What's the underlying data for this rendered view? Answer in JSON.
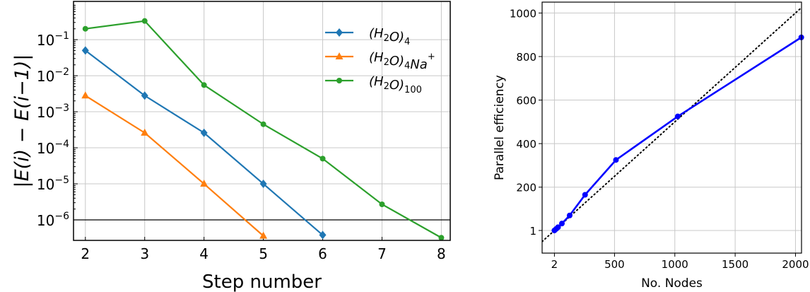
{
  "chart_data": [
    {
      "type": "line",
      "xlabel": "Step number",
      "ylabel": "|E(i) − E(i−1)|",
      "yscale": "log",
      "xlim": [
        1.8,
        8.15
      ],
      "ylim": [
        2.7e-07,
        1.15
      ],
      "xticks": [
        2,
        3,
        4,
        5,
        6,
        7,
        8
      ],
      "yticks": [
        {
          "value": 0.1,
          "label": "10",
          "exp": "−1"
        },
        {
          "value": 0.01,
          "label": "10",
          "exp": "−2"
        },
        {
          "value": 0.001,
          "label": "10",
          "exp": "−3"
        },
        {
          "value": 0.0001,
          "label": "10",
          "exp": "−4"
        },
        {
          "value": 1e-05,
          "label": "10",
          "exp": "−5"
        },
        {
          "value": 1e-06,
          "label": "10",
          "exp": "−6"
        }
      ],
      "grid": true,
      "legend_placement": "top-right",
      "hline": 1e-06,
      "series": [
        {
          "name": "(H2O)4",
          "name_parts": [
            [
              "(H",
              ""
            ],
            [
              "2",
              "sub"
            ],
            [
              "O)",
              ""
            ],
            [
              "4",
              "sub"
            ]
          ],
          "color": "#1f77b4",
          "marker": "diamond",
          "x": [
            2,
            3,
            4,
            5,
            6
          ],
          "y": [
            0.05,
            0.0028,
            0.00026,
            1e-05,
            3.8e-07
          ]
        },
        {
          "name": "(H2O)4Na+",
          "name_parts": [
            [
              "(H",
              ""
            ],
            [
              "2",
              "sub"
            ],
            [
              "O)",
              ""
            ],
            [
              "4",
              "sub"
            ],
            [
              "Na",
              ""
            ],
            [
              "+",
              "sup"
            ]
          ],
          "color": "#ff7f0e",
          "marker": "triangle",
          "x": [
            2,
            3,
            4,
            5
          ],
          "y": [
            0.0028,
            0.00026,
            1e-05,
            3.6e-07
          ]
        },
        {
          "name": "(H2O)100",
          "name_parts": [
            [
              "(H",
              ""
            ],
            [
              "2",
              "sub"
            ],
            [
              "O)",
              ""
            ],
            [
              "100",
              "sub"
            ]
          ],
          "color": "#2ca02c",
          "marker": "circle",
          "x": [
            2,
            3,
            4,
            5,
            6,
            7,
            8
          ],
          "y": [
            0.2,
            0.33,
            0.0055,
            0.00045,
            5e-05,
            2.7e-06,
            3.2e-07
          ]
        }
      ]
    },
    {
      "type": "line",
      "xlabel": "No. Nodes",
      "ylabel": "Parallel efficiency",
      "xlim": [
        -100,
        2050
      ],
      "ylim": [
        -103,
        1050
      ],
      "xticks": [
        {
          "value": 2,
          "label": "2"
        },
        {
          "value": 500,
          "label": "500"
        },
        {
          "value": 1000,
          "label": "1000"
        },
        {
          "value": 1500,
          "label": "1500"
        },
        {
          "value": 2000,
          "label": "2000"
        }
      ],
      "yticks": [
        {
          "value": 1,
          "label": "1"
        },
        {
          "value": 200,
          "label": "200"
        },
        {
          "value": 400,
          "label": "400"
        },
        {
          "value": 600,
          "label": "600"
        },
        {
          "value": 800,
          "label": "800"
        },
        {
          "value": 1000,
          "label": "1000"
        }
      ],
      "grid": true,
      "series": [
        {
          "color": "#0000ff",
          "marker": "circle",
          "x": [
            2,
            16,
            32,
            64,
            128,
            256,
            512,
            1024,
            2048
          ],
          "y": [
            1,
            8,
            16,
            33,
            70,
            165,
            325,
            525,
            888
          ]
        }
      ],
      "reference_line": {
        "style": "dotted",
        "color": "#000000",
        "x": [
          -100,
          2048
        ],
        "y": [
          -50,
          1024
        ]
      }
    }
  ]
}
